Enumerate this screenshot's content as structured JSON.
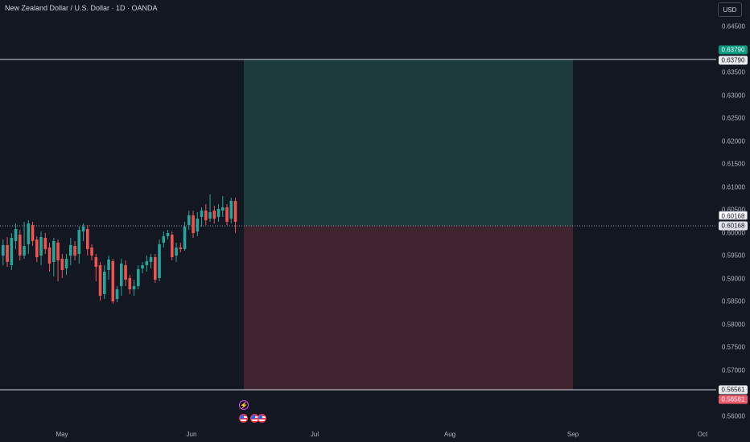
{
  "title": "New Zealand Dollar / U.S. Dollar · 1D · OANDA",
  "currency": "USD",
  "price_axis": {
    "ticks": [
      "0.64500",
      "0.63500",
      "0.63000",
      "0.62500",
      "0.62000",
      "0.61500",
      "0.61000",
      "0.60500",
      "0.60000",
      "0.59500",
      "0.59000",
      "0.58500",
      "0.58000",
      "0.57500",
      "0.57000",
      "0.56000"
    ]
  },
  "time_axis": {
    "ticks": [
      "May",
      "Jun",
      "Jul",
      "Aug",
      "Sep",
      "Oct"
    ]
  },
  "position": {
    "take_profit": "0.63790",
    "entry": "0.60168",
    "stop_loss": "0.56561",
    "take_profit_label": "0.63790",
    "entry_label": "0.60168",
    "stop_loss_label": "0.56561"
  },
  "colors": {
    "background": "#131722",
    "up": "#26a69a",
    "down": "#ef5350",
    "profit_zone": "#1c3a3c",
    "loss_zone": "#3f232f",
    "accent_event": "#e040fb"
  },
  "events": {
    "flash_icon": "lightning-icon",
    "flag_icon": "us-flag-icon"
  }
}
